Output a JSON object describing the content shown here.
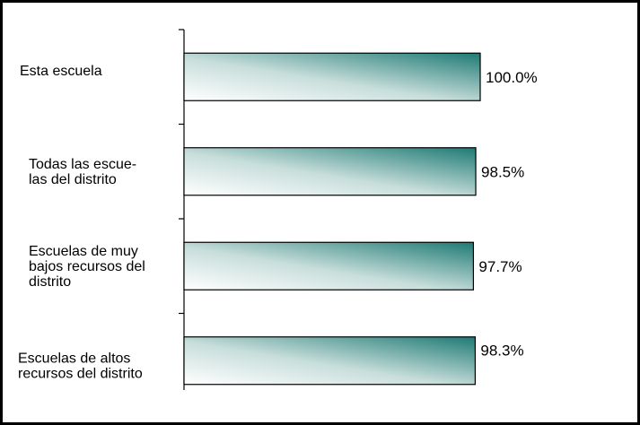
{
  "chart_data": {
    "type": "bar",
    "orientation": "horizontal",
    "categories": [
      [
        "Esta escuela"
      ],
      [
        "Todas las escue-",
        "las del distrito"
      ],
      [
        "Escuelas de muy",
        "bajos recursos del",
        "distrito"
      ],
      [
        "Escuelas de altos",
        "recursos del distrito"
      ]
    ],
    "values": [
      100.0,
      98.5,
      97.7,
      98.3
    ],
    "value_labels": [
      "100.0%",
      "98.5%",
      "97.7%",
      "98.3%"
    ],
    "title": "",
    "xlabel": "",
    "ylabel": "",
    "grid": false,
    "legend": "none",
    "colors": {
      "bar_dark": "#1e7a74",
      "bar_light": "#ffffff",
      "border": "#000000"
    }
  }
}
